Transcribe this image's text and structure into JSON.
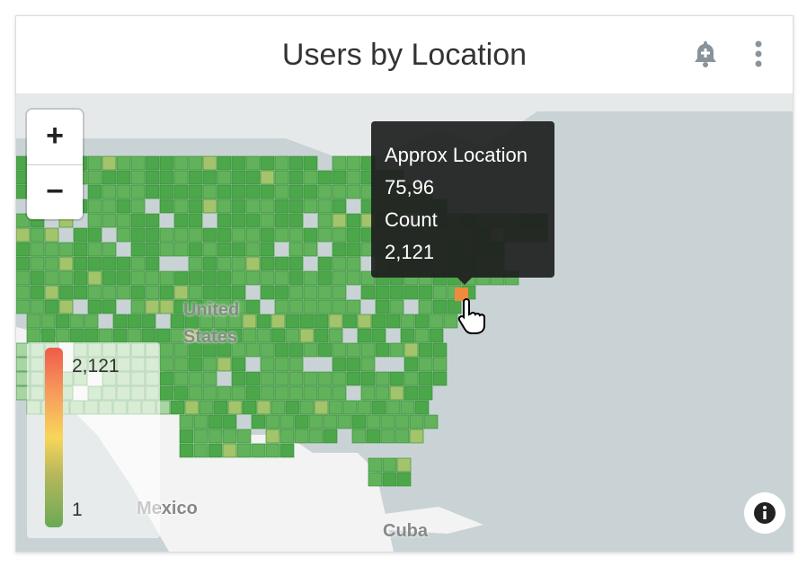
{
  "header": {
    "title": "Users by Location",
    "alert_icon": "bell-plus-icon",
    "menu_icon": "more-vertical-icon"
  },
  "map": {
    "zoom_in": "+",
    "zoom_out": "−",
    "labels": {
      "us": "United States",
      "us1": "United",
      "us2": "States",
      "mexico": "Mexico",
      "cuba": "Cuba"
    },
    "legend": {
      "max": "2,121",
      "min": "1",
      "colors": [
        "#ef5b4a",
        "#f8d65a",
        "#6aa955"
      ]
    },
    "tooltip": {
      "l1": "Approx Location",
      "v1": "75,96",
      "l2": "Count",
      "v2": "2,121"
    },
    "cell_color": "#4caf50",
    "highlight_color": "#f08a3c"
  }
}
